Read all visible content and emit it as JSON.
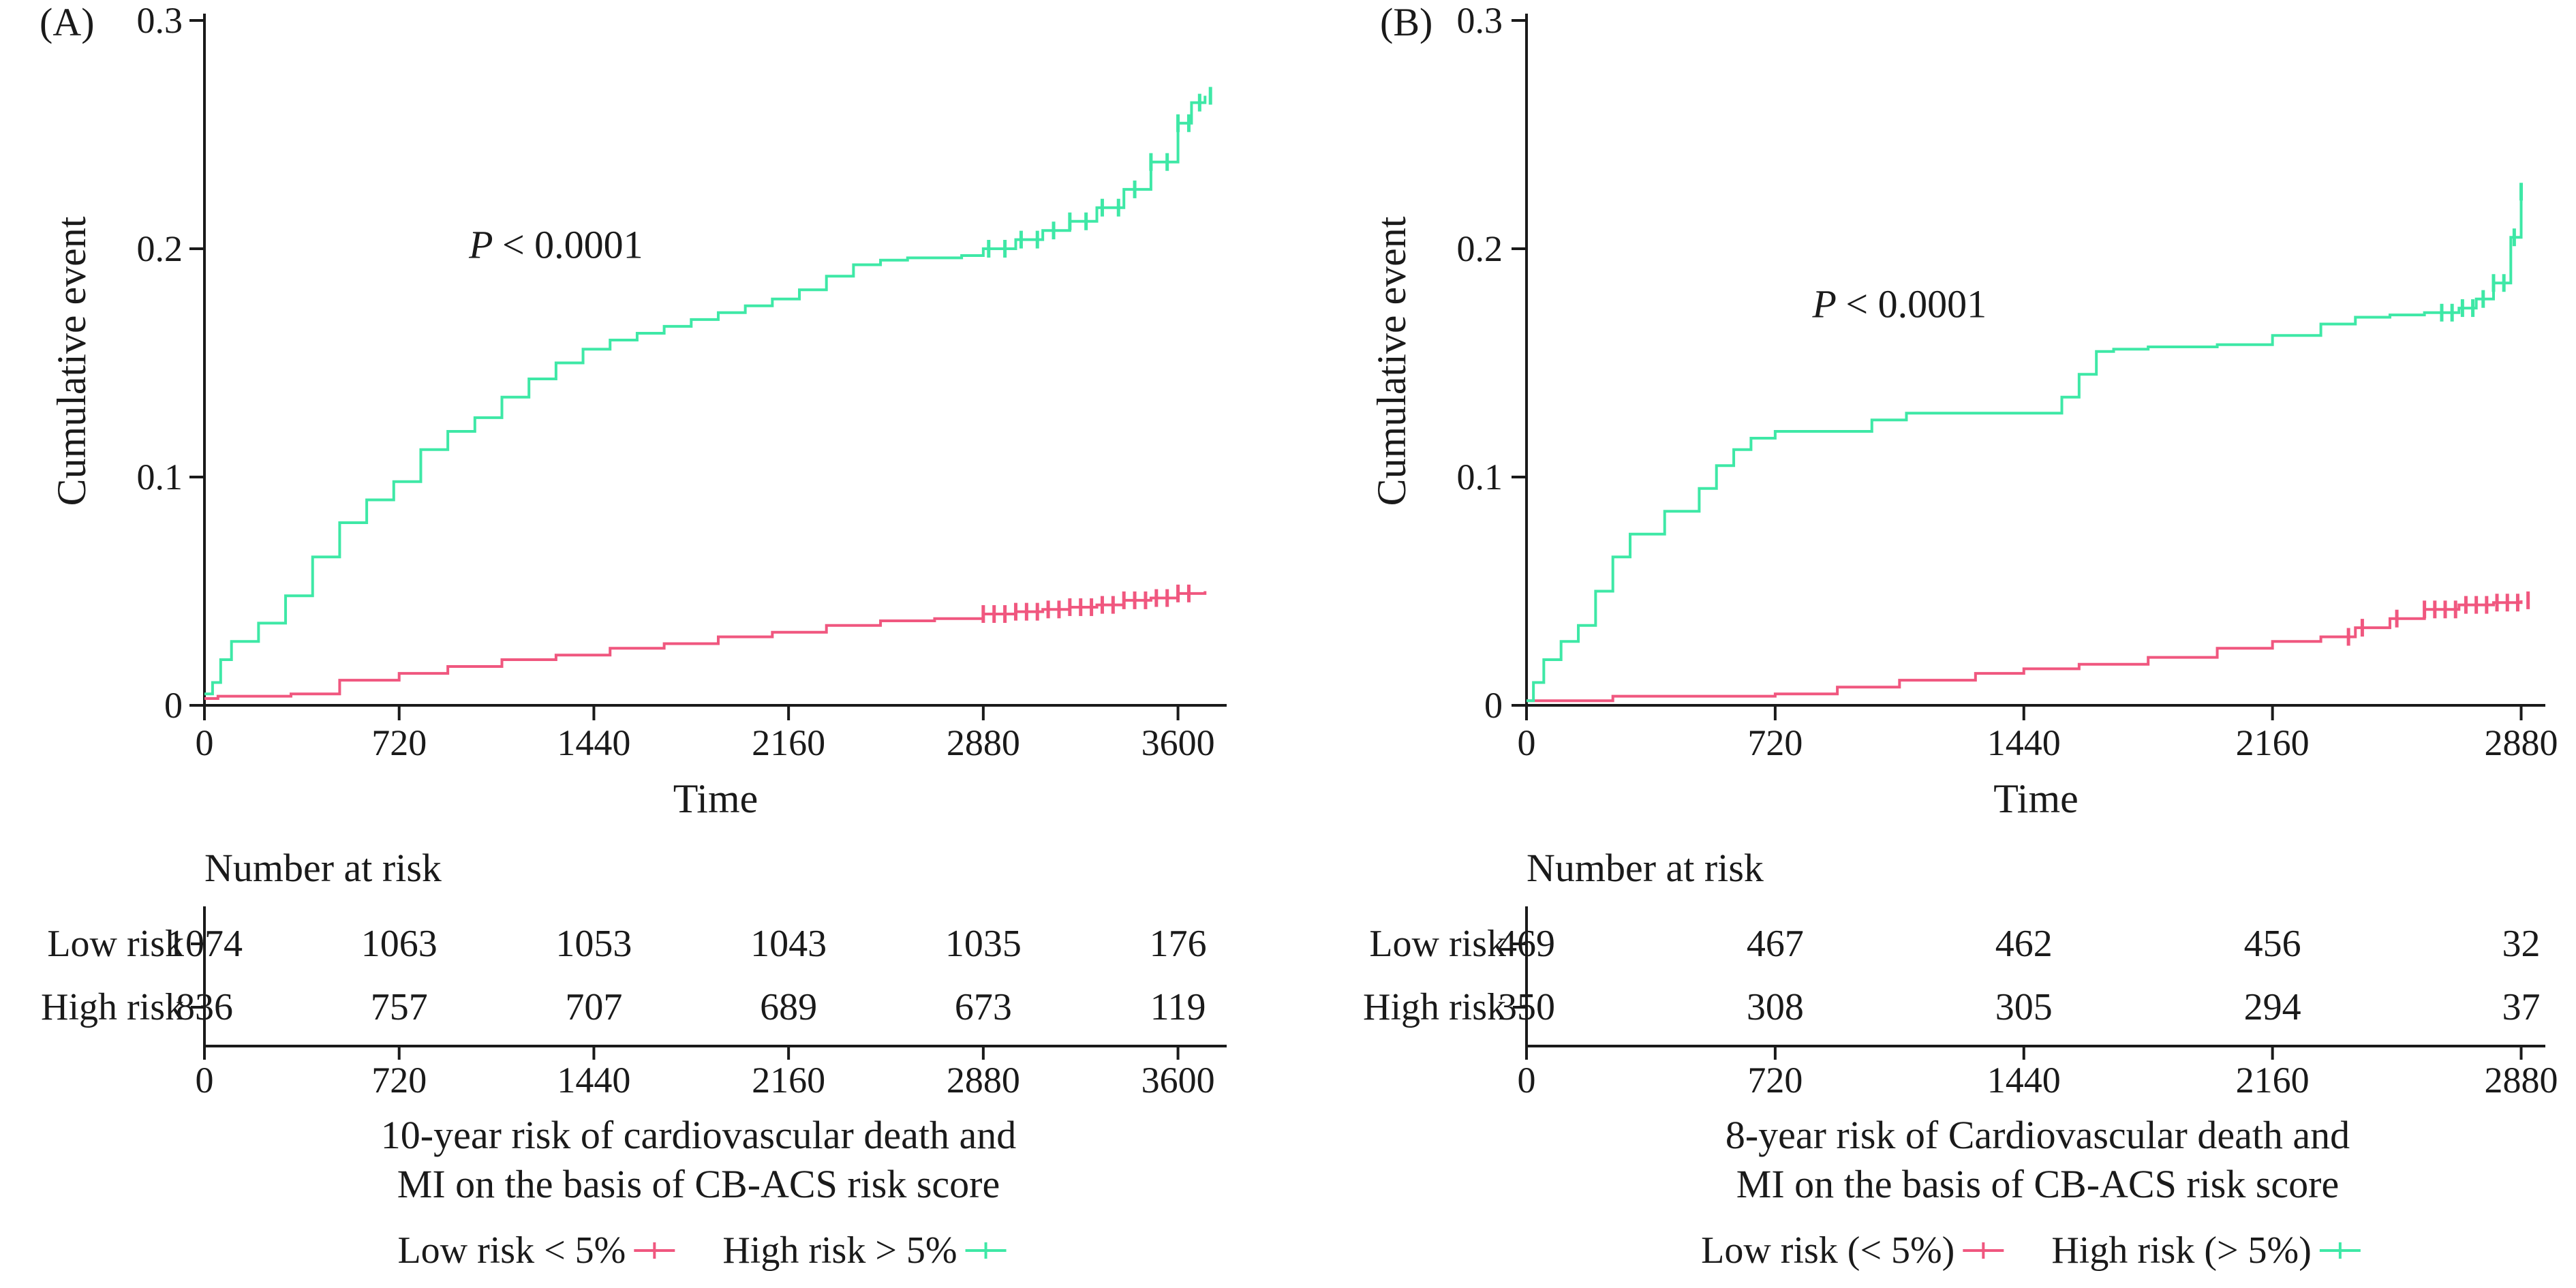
{
  "colors": {
    "low": "#f0577f",
    "high": "#3ee8a6",
    "axis": "#1a1a1a"
  },
  "chart_data": [
    {
      "type": "line",
      "panel_label": "(A)",
      "ylabel": "Cumulative event",
      "xlabel": "Time",
      "xlim": [
        0,
        3780
      ],
      "ylim": [
        0,
        0.3
      ],
      "x_ticks": [
        0,
        720,
        1440,
        2160,
        2880,
        3600
      ],
      "y_ticks": [
        0,
        0.1,
        0.2,
        0.3
      ],
      "y_tick_labels": [
        "0",
        "0.1",
        "0.2",
        "0.3"
      ],
      "annotation": {
        "italic": "P",
        "text": "< 0.0001",
        "x": 1300,
        "y": 0.196
      },
      "series": [
        {
          "key": "low",
          "name": "Low risk < 5%",
          "x": [
            0,
            50,
            150,
            320,
            500,
            720,
            900,
            1100,
            1300,
            1500,
            1700,
            1900,
            2100,
            2300,
            2500,
            2700,
            2880,
            3000,
            3100,
            3200,
            3300,
            3400,
            3500,
            3600,
            3700
          ],
          "y": [
            0.003,
            0.004,
            0.004,
            0.005,
            0.011,
            0.014,
            0.017,
            0.02,
            0.022,
            0.025,
            0.027,
            0.03,
            0.032,
            0.035,
            0.037,
            0.038,
            0.04,
            0.041,
            0.042,
            0.043,
            0.044,
            0.046,
            0.047,
            0.049,
            0.05
          ],
          "censor_x": [
            2880,
            2920,
            2960,
            3000,
            3040,
            3080,
            3120,
            3160,
            3200,
            3240,
            3280,
            3320,
            3360,
            3400,
            3440,
            3480,
            3520,
            3560,
            3600,
            3640
          ]
        },
        {
          "key": "high",
          "name": "High risk > 5%",
          "x": [
            0,
            30,
            60,
            100,
            200,
            300,
            400,
            500,
            600,
            700,
            800,
            900,
            1000,
            1100,
            1200,
            1300,
            1400,
            1500,
            1600,
            1700,
            1800,
            1900,
            2000,
            2100,
            2200,
            2300,
            2400,
            2500,
            2600,
            2700,
            2800,
            2880,
            3000,
            3100,
            3200,
            3300,
            3400,
            3500,
            3600,
            3650,
            3700
          ],
          "y": [
            0.005,
            0.01,
            0.02,
            0.028,
            0.036,
            0.048,
            0.065,
            0.08,
            0.09,
            0.098,
            0.112,
            0.12,
            0.126,
            0.135,
            0.143,
            0.15,
            0.156,
            0.16,
            0.163,
            0.166,
            0.169,
            0.172,
            0.175,
            0.178,
            0.182,
            0.188,
            0.193,
            0.195,
            0.196,
            0.196,
            0.197,
            0.2,
            0.204,
            0.208,
            0.212,
            0.218,
            0.226,
            0.238,
            0.255,
            0.264,
            0.267
          ],
          "censor_x": [
            2900,
            2960,
            3020,
            3080,
            3140,
            3200,
            3260,
            3320,
            3380,
            3440,
            3500,
            3560,
            3600,
            3640,
            3680,
            3720
          ]
        }
      ],
      "risk_table": {
        "title": "Number at risk",
        "rows": [
          {
            "label": "Low risk",
            "key": "low",
            "values": [
              "1074",
              "1063",
              "1053",
              "1043",
              "1035",
              "176"
            ]
          },
          {
            "label": "High risk",
            "key": "high",
            "values": [
              "836",
              "757",
              "707",
              "689",
              "673",
              "119"
            ]
          }
        ]
      },
      "caption": [
        "10-year risk of cardiovascular death and",
        "MI on the basis of CB-ACS risk score"
      ],
      "legend": [
        {
          "label": "Low risk < 5%",
          "key": "low"
        },
        {
          "label": "High risk > 5%",
          "key": "high"
        }
      ]
    },
    {
      "type": "line",
      "panel_label": "(B)",
      "ylabel": "Cumulative event",
      "xlabel": "Time",
      "xlim": [
        0,
        2950
      ],
      "ylim": [
        0,
        0.3
      ],
      "x_ticks": [
        0,
        720,
        1440,
        2160,
        2880
      ],
      "y_ticks": [
        0,
        0.1,
        0.2,
        0.3
      ],
      "y_tick_labels": [
        "0",
        "0.1",
        "0.2",
        "0.3"
      ],
      "annotation": {
        "italic": "P",
        "text": "< 0.0001",
        "x": 1080,
        "y": 0.17
      },
      "series": [
        {
          "key": "low",
          "name": "Low risk (< 5%)",
          "x": [
            0,
            100,
            250,
            500,
            720,
            900,
            1080,
            1300,
            1440,
            1600,
            1800,
            2000,
            2160,
            2300,
            2400,
            2500,
            2600,
            2700,
            2800,
            2880
          ],
          "y": [
            0.002,
            0.002,
            0.004,
            0.004,
            0.005,
            0.008,
            0.011,
            0.014,
            0.016,
            0.018,
            0.021,
            0.025,
            0.028,
            0.03,
            0.034,
            0.038,
            0.042,
            0.044,
            0.045,
            0.046
          ],
          "censor_x": [
            2380,
            2420,
            2520,
            2600,
            2630,
            2660,
            2690,
            2720,
            2750,
            2780,
            2810,
            2840,
            2870,
            2900
          ]
        },
        {
          "key": "high",
          "name": "High risk (> 5%)",
          "x": [
            0,
            20,
            50,
            100,
            150,
            200,
            250,
            300,
            400,
            500,
            550,
            600,
            650,
            720,
            900,
            1000,
            1100,
            1200,
            1300,
            1440,
            1550,
            1600,
            1650,
            1700,
            1800,
            2000,
            2160,
            2300,
            2400,
            2500,
            2600,
            2700,
            2750,
            2800,
            2850,
            2880
          ],
          "y": [
            0.002,
            0.01,
            0.02,
            0.028,
            0.035,
            0.05,
            0.065,
            0.075,
            0.085,
            0.095,
            0.105,
            0.112,
            0.117,
            0.12,
            0.12,
            0.125,
            0.128,
            0.128,
            0.128,
            0.128,
            0.135,
            0.145,
            0.155,
            0.156,
            0.157,
            0.158,
            0.162,
            0.167,
            0.17,
            0.171,
            0.172,
            0.174,
            0.178,
            0.185,
            0.205,
            0.225
          ],
          "censor_x": [
            2650,
            2680,
            2710,
            2740,
            2770,
            2800,
            2830,
            2860,
            2880
          ]
        }
      ],
      "risk_table": {
        "title": "Number at risk",
        "rows": [
          {
            "label": "Low risk",
            "key": "low",
            "values": [
              "469",
              "467",
              "462",
              "456",
              "32"
            ]
          },
          {
            "label": "High risk",
            "key": "high",
            "values": [
              "350",
              "308",
              "305",
              "294",
              "37"
            ]
          }
        ]
      },
      "caption": [
        "8-year risk of Cardiovascular death and",
        "MI on the basis of CB-ACS risk score"
      ],
      "legend": [
        {
          "label": "Low risk (< 5%)",
          "key": "low"
        },
        {
          "label": "High risk (> 5%)",
          "key": "high"
        }
      ]
    }
  ]
}
